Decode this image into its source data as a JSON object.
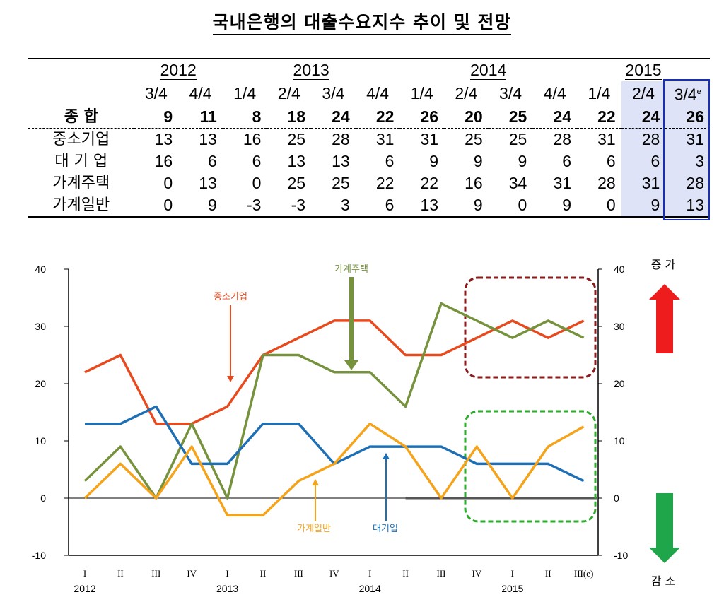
{
  "title": "국내은행의 대출수요지수 추이 및 전망",
  "table": {
    "years": [
      "2012",
      "2013",
      "2014",
      "2015"
    ],
    "quarters": [
      "3/4",
      "4/4",
      "1/4",
      "2/4",
      "3/4",
      "4/4",
      "1/4",
      "2/4",
      "3/4",
      "4/4",
      "1/4",
      "2/4",
      "3/4"
    ],
    "last_superscript": "e",
    "rows": [
      {
        "label": "종 합",
        "values": [
          "9",
          "11",
          "8",
          "18",
          "24",
          "22",
          "26",
          "20",
          "25",
          "24",
          "22",
          "24",
          "26"
        ]
      },
      {
        "label": "중소기업",
        "values": [
          "13",
          "13",
          "16",
          "25",
          "28",
          "31",
          "31",
          "25",
          "25",
          "28",
          "31",
          "28",
          "31"
        ]
      },
      {
        "label": "대 기 업",
        "values": [
          "16",
          "6",
          "6",
          "13",
          "13",
          "6",
          "9",
          "9",
          "9",
          "6",
          "6",
          "6",
          "3"
        ]
      },
      {
        "label": "가계주택",
        "values": [
          "0",
          "13",
          "0",
          "25",
          "25",
          "22",
          "22",
          "16",
          "34",
          "31",
          "28",
          "31",
          "28"
        ]
      },
      {
        "label": "가계일반",
        "values": [
          "0",
          "9",
          "-3",
          "-3",
          "3",
          "6",
          "13",
          "9",
          "0",
          "9",
          "0",
          "9",
          "13"
        ]
      }
    ]
  },
  "chart_data": {
    "type": "line",
    "x_tick_labels": [
      "I",
      "II",
      "III",
      "IV",
      "I",
      "II",
      "III",
      "IV",
      "I",
      "II",
      "III",
      "IV",
      "I",
      "II",
      "III(e)"
    ],
    "x_year_labels": [
      "2012",
      "2013",
      "2014",
      "2015"
    ],
    "ylim": [
      -10,
      40
    ],
    "y_ticks": [
      "-10",
      "0",
      "10",
      "20",
      "30",
      "40"
    ],
    "right_up_label": "증 가",
    "right_down_label": "감 소",
    "series": [
      {
        "name": "중소기업",
        "color": "#e84a1e",
        "values": [
          22,
          25,
          13,
          13,
          16,
          25,
          28,
          31,
          31,
          25,
          25,
          28,
          31,
          28,
          31
        ]
      },
      {
        "name": "가계주택",
        "color": "#76923c",
        "values": [
          3,
          9,
          0,
          13,
          0,
          25,
          25,
          22,
          22,
          16,
          34,
          31,
          28,
          31,
          28
        ]
      },
      {
        "name": "대기업",
        "color": "#1f6fb5",
        "values": [
          13,
          13,
          16,
          6,
          6,
          13,
          13,
          6,
          9,
          9,
          9,
          6,
          6,
          6,
          3
        ]
      },
      {
        "name": "가계일반",
        "color": "#f5a31a",
        "values": [
          0,
          6,
          0,
          9,
          -3,
          -3,
          3,
          6,
          13,
          9,
          0,
          9,
          0,
          9,
          12.5
        ]
      }
    ],
    "colors": {
      "up_arrow": "#ee1c1c",
      "down_arrow": "#1fa64a",
      "box_red": "#8b1a1a",
      "box_green": "#2eaa2e",
      "baseline": "#555555"
    }
  }
}
